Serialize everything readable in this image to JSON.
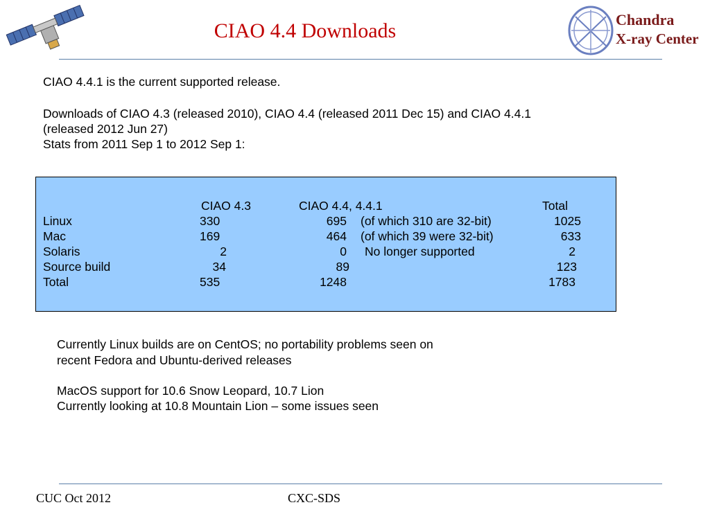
{
  "title": "CIAO 4.4 Downloads",
  "intro": {
    "line1": "CIAO 4.4.1 is the current supported release.",
    "line2": "Downloads of  CIAO 4.3 (released 2010), CIAO 4.4 (released 2011 Dec 15) and CIAO 4.4.1",
    "line3": "(released 2012 Jun 27)",
    "line4": "Stats from 2011 Sep 1 to 2012 Sep 1:"
  },
  "table": {
    "headers": [
      "CIAO 4.3",
      "CIAO 4.4, 4.4.1",
      "Total"
    ],
    "rows": [
      {
        "label": "Linux",
        "c43": "330",
        "c44": "695",
        "note": "(of which 310 are 32-bit)",
        "total": "1025"
      },
      {
        "label": "Mac",
        "c43": "169",
        "c44": "464",
        "note": "(of which 39 were 32-bit)",
        "total": "633"
      },
      {
        "label": "Solaris",
        "c43": "2",
        "c44": "0",
        "note": "No longer supported",
        "total": "2"
      },
      {
        "label": "Source build",
        "c43": "34",
        "c44": "89",
        "note": "",
        "total": "123"
      },
      {
        "label": "Total",
        "c43": "535",
        "c44": "1248",
        "note": "",
        "total": "1783"
      }
    ]
  },
  "notes": {
    "line1": "Currently Linux builds are on CentOS; no portability problems seen on",
    "line2": "recent Fedora and Ubuntu-derived releases",
    "line3": "MacOS support for 10.6 Snow Leopard, 10.7 Lion",
    "line4": "Currently looking at 10.8 Mountain Lion – some issues seen"
  },
  "logo": {
    "line1": "Chandra",
    "line2": "X-ray Center"
  },
  "footer": {
    "left": "CUC Oct 2012",
    "center": "CXC-SDS"
  },
  "colors": {
    "title": "#c00000",
    "rule": "#5a7fa8",
    "table_bg": "#99ccff",
    "logo_text": "#7a1a1a",
    "logo_ring": "#6a7fc0"
  }
}
